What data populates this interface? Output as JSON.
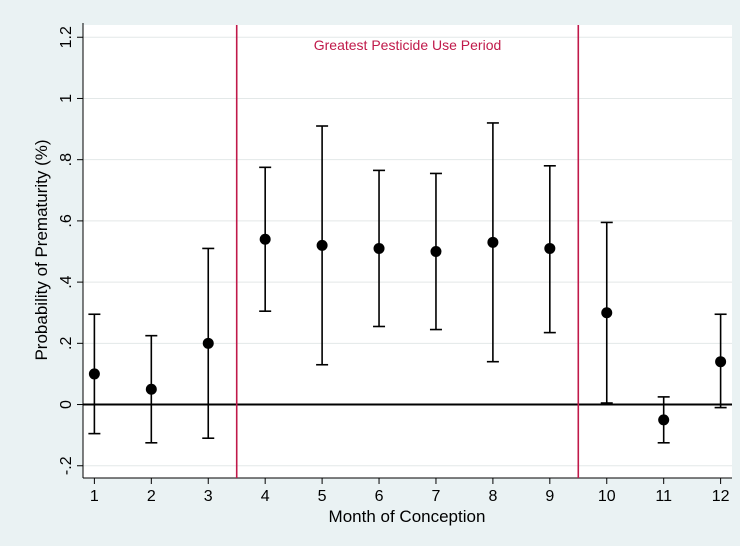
{
  "chart_data": {
    "type": "scatter",
    "title": "",
    "xlabel": "Month of Conception",
    "ylabel": "Probability of Prematurity (%)",
    "x_ticks": [
      1,
      2,
      3,
      4,
      5,
      6,
      7,
      8,
      9,
      10,
      11,
      12
    ],
    "x_tick_labels": [
      "1",
      "2",
      "3",
      "4",
      "5",
      "6",
      "7",
      "8",
      "9",
      "10",
      "11",
      "12"
    ],
    "y_ticks": [
      -0.2,
      0,
      0.2,
      0.4,
      0.6,
      0.8,
      1,
      1.2
    ],
    "y_tick_labels": [
      "-.2",
      "0",
      ".2",
      ".4",
      ".6",
      ".8",
      "1",
      "1.2"
    ],
    "xlim": [
      0.8,
      12.2
    ],
    "ylim": [
      -0.24,
      1.24
    ],
    "grid": true,
    "reference_line_y": 0,
    "series": [
      {
        "x": [
          1,
          2,
          3,
          4,
          5,
          6,
          7,
          8,
          9,
          10,
          11,
          12
        ],
        "y": [
          0.1,
          0.05,
          0.2,
          0.54,
          0.52,
          0.51,
          0.5,
          0.53,
          0.51,
          0.3,
          -0.05,
          0.14
        ],
        "ci_low": [
          -0.095,
          -0.125,
          -0.11,
          0.305,
          0.13,
          0.255,
          0.245,
          0.14,
          0.235,
          0.005,
          -0.125,
          -0.01
        ],
        "ci_high": [
          0.295,
          0.225,
          0.51,
          0.775,
          0.91,
          0.765,
          0.755,
          0.92,
          0.78,
          0.595,
          0.025,
          0.295
        ]
      }
    ],
    "highlight_period": {
      "label": "Greatest Pesticide Use Period",
      "x_start": 3.5,
      "x_end": 9.5,
      "color": "#c0194a"
    },
    "colors": {
      "background": "#eaf2f3",
      "plot_background": "#ffffff",
      "marker": "#000000",
      "grid": "#e3e8e8"
    }
  }
}
